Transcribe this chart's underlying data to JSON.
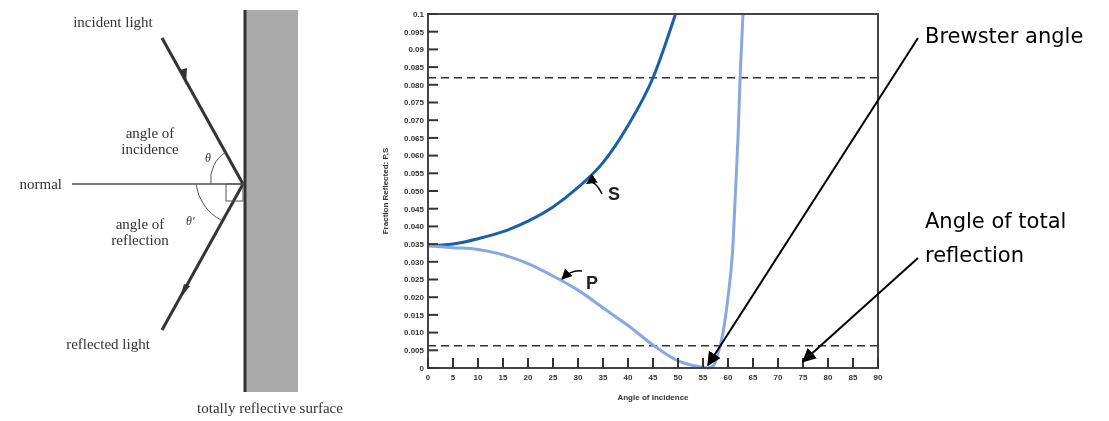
{
  "chart_data": {
    "type": "line",
    "xlabel": "Angle of Incidence",
    "ylabel": "Fraction Reflected: P,S",
    "xlim": [
      0,
      90
    ],
    "ylim": [
      0,
      0.1
    ],
    "xticks": [
      0,
      5,
      10,
      15,
      20,
      25,
      30,
      35,
      40,
      45,
      50,
      55,
      60,
      65,
      70,
      75,
      80,
      85,
      90
    ],
    "yticks": [
      0,
      {
        "value": 0.005,
        "label": "0.005"
      },
      {
        "value": 0.01,
        "label": "0.010"
      },
      {
        "value": 0.015,
        "label": "0.015"
      },
      {
        "value": 0.02,
        "label": "0.020"
      },
      {
        "value": 0.025,
        "label": "0.025"
      },
      {
        "value": 0.03,
        "label": "0.030"
      },
      {
        "value": 0.035,
        "label": "0.035"
      },
      {
        "value": 0.04,
        "label": "0.040"
      },
      {
        "value": 0.045,
        "label": "0.045"
      },
      {
        "value": 0.05,
        "label": "0.050"
      },
      {
        "value": 0.055,
        "label": "0.055"
      },
      {
        "value": 0.06,
        "label": "0.060"
      },
      {
        "value": 0.065,
        "label": "0.065"
      },
      {
        "value": 0.07,
        "label": "0.070"
      },
      {
        "value": 0.075,
        "label": "0.075"
      },
      {
        "value": 0.08,
        "label": "0.080"
      },
      0.085,
      0.09,
      0.095,
      0.1
    ],
    "series": [
      {
        "color": "#1a5fa8",
        "x": [
          0,
          5,
          10,
          15,
          20,
          25,
          30,
          35,
          40,
          45,
          49.5
        ],
        "values": [
          0.0345,
          0.035,
          0.0365,
          0.0385,
          0.0415,
          0.0455,
          0.051,
          0.058,
          0.0685,
          0.082,
          0.1
        ]
      },
      {
        "color": "#88a8e0",
        "x": [
          0,
          5,
          10,
          15,
          20,
          25,
          30,
          35,
          40,
          45,
          50,
          53,
          55,
          56,
          57,
          58,
          59,
          60,
          61,
          61.5,
          62,
          62.5,
          63
        ],
        "values": [
          0.0345,
          0.034,
          0.0335,
          0.032,
          0.0295,
          0.026,
          0.022,
          0.017,
          0.012,
          0.0065,
          0.002,
          0.0007,
          0.0002,
          0,
          0.0005,
          0.004,
          0.01,
          0.02,
          0.035,
          0.05,
          0.065,
          0.085,
          0.1
        ]
      }
    ],
    "ref_lines": [
      {
        "axis": "y",
        "value": 0.082,
        "line_style": "dashed",
        "color": "#333333"
      },
      {
        "axis": "y",
        "value": 0.0063,
        "line_style": "dashed",
        "color": "#333333"
      }
    ],
    "annotations": [
      {
        "text": "S",
        "x": 31,
        "y": 0.053
      },
      {
        "text": "P",
        "x": 26,
        "y": 0.026
      },
      {
        "text": "Brewster angle",
        "x": 56,
        "y": 0
      },
      "Angle of total reflection",
      "incident light",
      "angle of incidence",
      "θ",
      "normal",
      "θ′",
      "angle of reflection",
      "reflected light",
      "totally reflective surface"
    ],
    "grid": false,
    "line_style": "solid",
    "marker": "none"
  }
}
